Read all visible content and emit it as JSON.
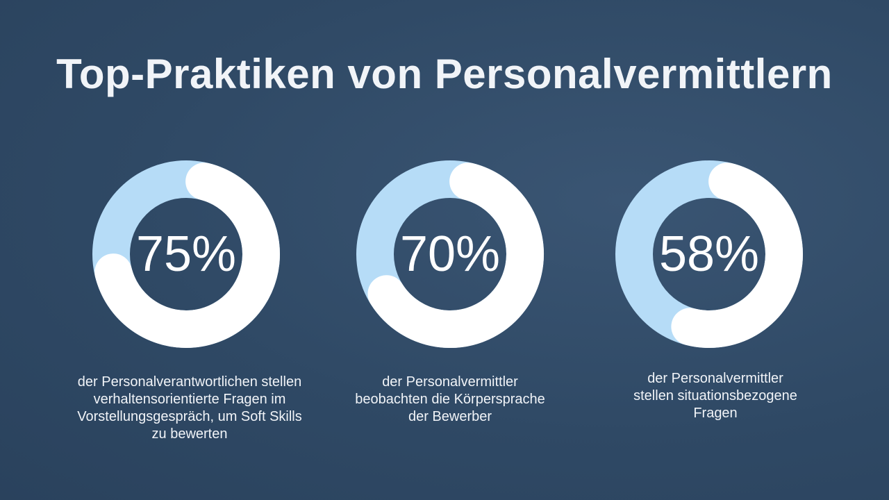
{
  "title": "Top-Praktiken von Personalvermittlern",
  "colors": {
    "background": "#2f4965",
    "arc": "#ffffff",
    "track": "#b6dcf7"
  },
  "chart_data": {
    "type": "pie",
    "variant": "donut",
    "items": [
      {
        "value": 75,
        "label": "75%",
        "caption": "der Personalverantwortlichen stellen verhaltensorientierte Fragen im Vorstellungsgespräch, um Soft Skills zu bewerten"
      },
      {
        "value": 70,
        "label": "70%",
        "caption": "der Personalvermittler beobachten die Körpersprache der Bewerber"
      },
      {
        "value": 58,
        "label": "58%",
        "caption": "der Personalvermittler stellen situationsbezogene Fragen"
      }
    ]
  }
}
